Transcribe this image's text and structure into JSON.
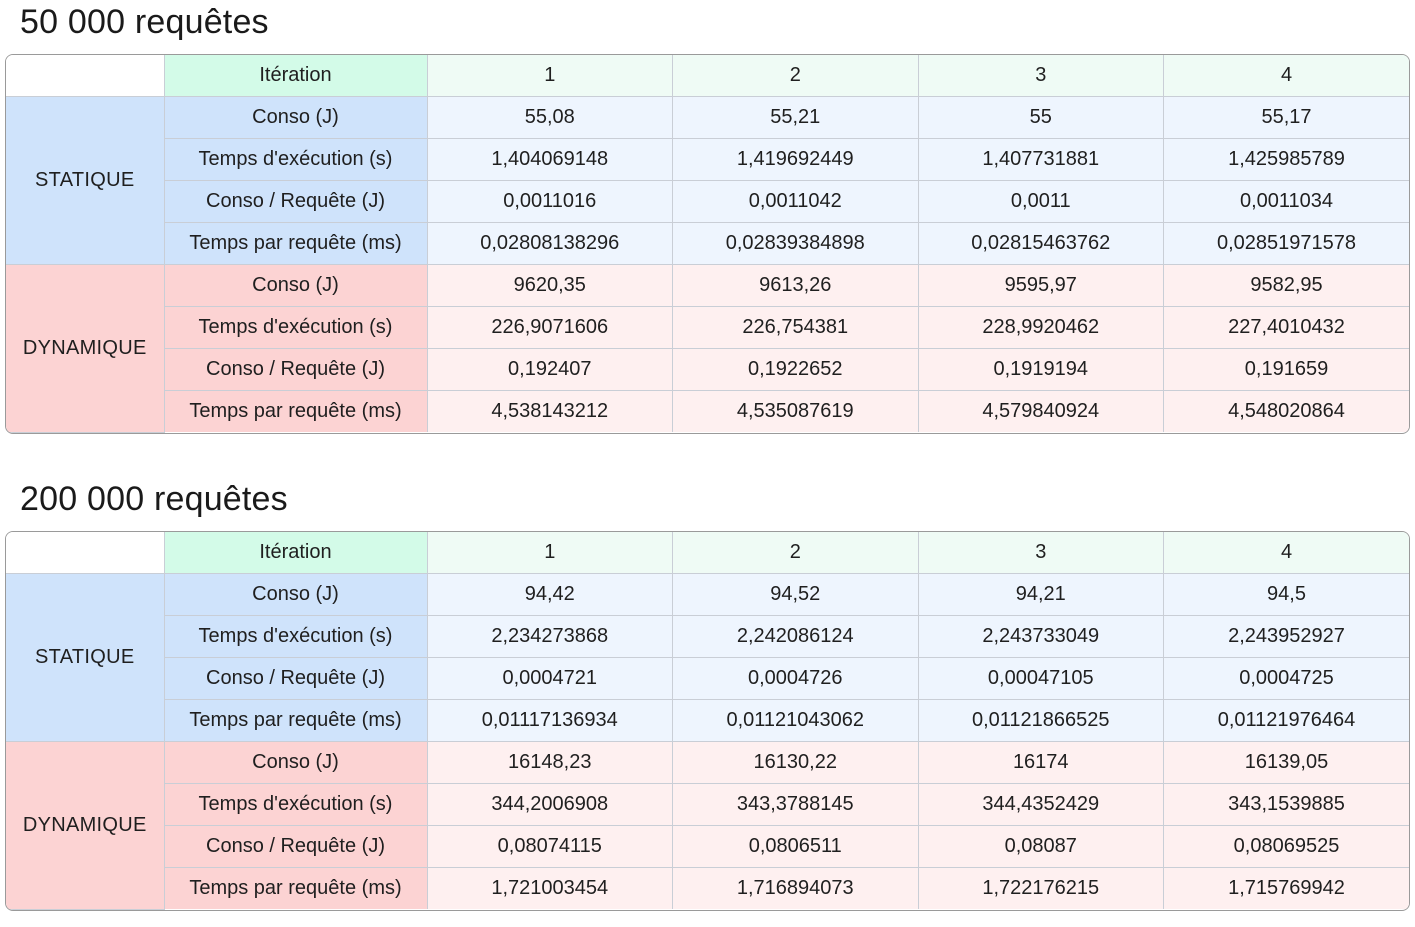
{
  "sections": [
    {
      "title": "50 000 requêtes",
      "header": {
        "label": "Itération",
        "iterations": [
          "1",
          "2",
          "3",
          "4"
        ]
      },
      "groups": [
        {
          "name": "STATIQUE",
          "rows": [
            {
              "label": "Conso (J)",
              "values": [
                "55,08",
                "55,21",
                "55",
                "55,17"
              ]
            },
            {
              "label": "Temps d'exécution (s)",
              "values": [
                "1,404069148",
                "1,419692449",
                "1,407731881",
                "1,425985789"
              ]
            },
            {
              "label": "Conso / Requête (J)",
              "values": [
                "0,0011016",
                "0,0011042",
                "0,0011",
                "0,0011034"
              ]
            },
            {
              "label": "Temps par requête (ms)",
              "values": [
                "0,02808138296",
                "0,02839384898",
                "0,02815463762",
                "0,02851971578"
              ]
            }
          ]
        },
        {
          "name": "DYNAMIQUE",
          "rows": [
            {
              "label": "Conso (J)",
              "values": [
                "9620,35",
                "9613,26",
                "9595,97",
                "9582,95"
              ]
            },
            {
              "label": "Temps d'exécution (s)",
              "values": [
                "226,9071606",
                "226,754381",
                "228,9920462",
                "227,4010432"
              ]
            },
            {
              "label": "Conso / Requête (J)",
              "values": [
                "0,192407",
                "0,1922652",
                "0,1919194",
                "0,191659"
              ]
            },
            {
              "label": "Temps par requête (ms)",
              "values": [
                "4,538143212",
                "4,535087619",
                "4,579840924",
                "4,548020864"
              ]
            }
          ]
        }
      ]
    },
    {
      "title": "200 000 requêtes",
      "header": {
        "label": "Itération",
        "iterations": [
          "1",
          "2",
          "3",
          "4"
        ]
      },
      "groups": [
        {
          "name": "STATIQUE",
          "rows": [
            {
              "label": "Conso (J)",
              "values": [
                "94,42",
                "94,52",
                "94,21",
                "94,5"
              ]
            },
            {
              "label": "Temps d'exécution (s)",
              "values": [
                "2,234273868",
                "2,242086124",
                "2,243733049",
                "2,243952927"
              ]
            },
            {
              "label": "Conso / Requête (J)",
              "values": [
                "0,0004721",
                "0,0004726",
                "0,00047105",
                "0,0004725"
              ]
            },
            {
              "label": "Temps par requête (ms)",
              "values": [
                "0,01117136934",
                "0,01121043062",
                "0,01121866525",
                "0,01121976464"
              ]
            }
          ]
        },
        {
          "name": "DYNAMIQUE",
          "rows": [
            {
              "label": "Conso (J)",
              "values": [
                "16148,23",
                "16130,22",
                "16174",
                "16139,05"
              ]
            },
            {
              "label": "Temps d'exécution (s)",
              "values": [
                "344,2006908",
                "343,3788145",
                "344,4352429",
                "343,1539885"
              ]
            },
            {
              "label": "Conso / Requête (J)",
              "values": [
                "0,08074115",
                "0,0806511",
                "0,08087",
                "0,08069525"
              ]
            },
            {
              "label": "Temps par requête (ms)",
              "values": [
                "1,721003454",
                "1,716894073",
                "1,722176215",
                "1,715769942"
              ]
            }
          ]
        }
      ]
    }
  ]
}
